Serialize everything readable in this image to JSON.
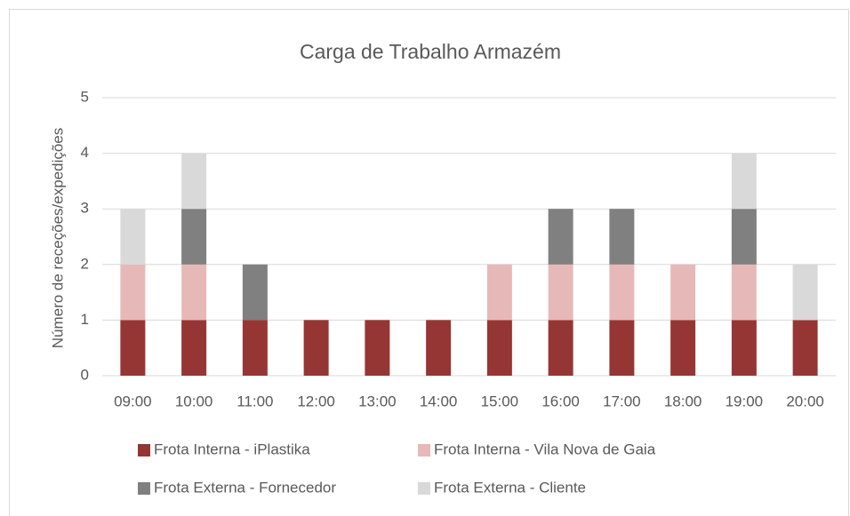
{
  "chart_data": {
    "type": "bar",
    "stacked": true,
    "title": "Carga de Trabalho Armazém",
    "y_label": "Número de receções/expedições",
    "categories": [
      "09:00",
      "10:00",
      "11:00",
      "12:00",
      "13:00",
      "14:00",
      "15:00",
      "16:00",
      "17:00",
      "18:00",
      "19:00",
      "20:00"
    ],
    "series": [
      {
        "name": "Frota Interna - iPlastika",
        "color": "#963634",
        "values": [
          1,
          1,
          1,
          1,
          1,
          1,
          1,
          1,
          1,
          1,
          1,
          1
        ]
      },
      {
        "name": "Frota Interna - Vila Nova de Gaia",
        "color": "#e6b9b8",
        "values": [
          1,
          1,
          0,
          0,
          0,
          0,
          1,
          1,
          1,
          1,
          1,
          0
        ]
      },
      {
        "name": "Frota Externa - Fornecedor",
        "color": "#808080",
        "values": [
          0,
          1,
          1,
          0,
          0,
          0,
          0,
          1,
          1,
          0,
          1,
          0
        ]
      },
      {
        "name": "Frota Externa - Cliente",
        "color": "#d9d9d9",
        "values": [
          1,
          1,
          0,
          0,
          0,
          0,
          0,
          0,
          0,
          0,
          1,
          1
        ]
      }
    ],
    "ylim": [
      0,
      5
    ],
    "yticks": [
      0,
      1,
      2,
      3,
      4,
      5
    ],
    "grid": true,
    "legend": "bottom"
  }
}
